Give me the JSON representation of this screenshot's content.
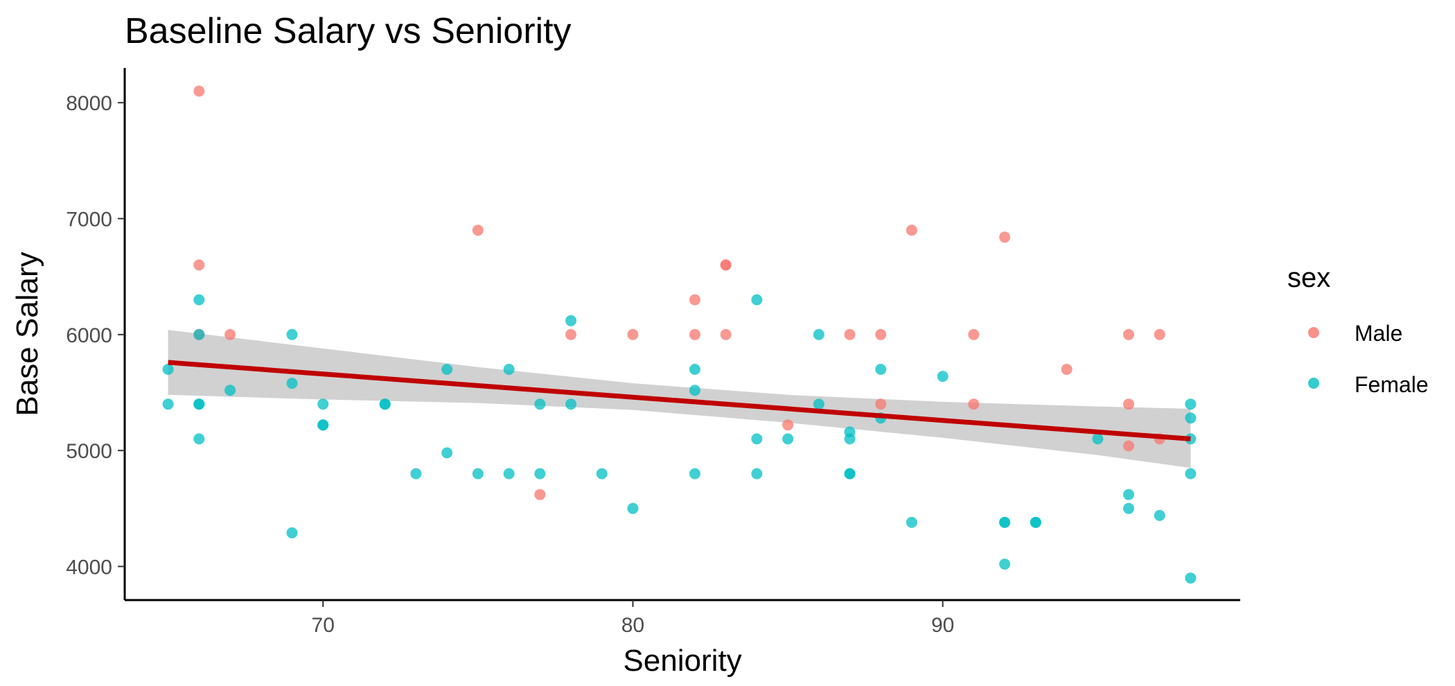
{
  "chart_data": {
    "type": "scatter",
    "title": "Baseline Salary vs Seniority",
    "xlabel": "Seniority",
    "ylabel": "Base Salary",
    "xlim": [
      63.6,
      99.6
    ],
    "ylim": [
      3710,
      8300
    ],
    "x_ticks": [
      70,
      80,
      90
    ],
    "y_ticks": [
      4000,
      5000,
      6000,
      7000,
      8000
    ],
    "grid": false,
    "legend": {
      "title": "sex",
      "position": "right"
    },
    "series": [
      {
        "name": "Male",
        "color": "#F8766D",
        "points": [
          [
            66,
            8100
          ],
          [
            66,
            6600
          ],
          [
            66,
            6000
          ],
          [
            67,
            6000
          ],
          [
            75,
            6900
          ],
          [
            77,
            4620
          ],
          [
            78,
            6000
          ],
          [
            80,
            6000
          ],
          [
            82,
            6300
          ],
          [
            82,
            6000
          ],
          [
            83,
            6600
          ],
          [
            83,
            6600
          ],
          [
            83,
            6000
          ],
          [
            85,
            5220
          ],
          [
            87,
            6000
          ],
          [
            88,
            6000
          ],
          [
            88,
            5400
          ],
          [
            89,
            6900
          ],
          [
            91,
            6000
          ],
          [
            91,
            5400
          ],
          [
            92,
            6840
          ],
          [
            94,
            5700
          ],
          [
            96,
            6000
          ],
          [
            96,
            5400
          ],
          [
            96,
            5040
          ],
          [
            97,
            6000
          ],
          [
            97,
            5100
          ]
        ]
      },
      {
        "name": "Female",
        "color": "#00BFC4",
        "points": [
          [
            65,
            5700
          ],
          [
            65,
            5400
          ],
          [
            66,
            6300
          ],
          [
            66,
            6000
          ],
          [
            66,
            5400
          ],
          [
            66,
            5400
          ],
          [
            66,
            5100
          ],
          [
            67,
            5520
          ],
          [
            69,
            6000
          ],
          [
            69,
            5580
          ],
          [
            69,
            4290
          ],
          [
            70,
            5400
          ],
          [
            70,
            5220
          ],
          [
            70,
            5220
          ],
          [
            72,
            5400
          ],
          [
            72,
            5400
          ],
          [
            73,
            4800
          ],
          [
            74,
            5700
          ],
          [
            74,
            4980
          ],
          [
            75,
            4800
          ],
          [
            76,
            5700
          ],
          [
            76,
            4800
          ],
          [
            77,
            5400
          ],
          [
            77,
            4800
          ],
          [
            78,
            6120
          ],
          [
            78,
            5400
          ],
          [
            79,
            4800
          ],
          [
            80,
            4500
          ],
          [
            82,
            5700
          ],
          [
            82,
            5520
          ],
          [
            82,
            4800
          ],
          [
            84,
            6300
          ],
          [
            84,
            5100
          ],
          [
            84,
            4800
          ],
          [
            85,
            5100
          ],
          [
            86,
            6000
          ],
          [
            86,
            5400
          ],
          [
            87,
            5160
          ],
          [
            87,
            5100
          ],
          [
            87,
            4800
          ],
          [
            87,
            4800
          ],
          [
            88,
            5700
          ],
          [
            88,
            5280
          ],
          [
            89,
            4380
          ],
          [
            90,
            5640
          ],
          [
            92,
            4380
          ],
          [
            92,
            4380
          ],
          [
            92,
            4020
          ],
          [
            93,
            4380
          ],
          [
            93,
            4380
          ],
          [
            95,
            5100
          ],
          [
            96,
            4620
          ],
          [
            96,
            4500
          ],
          [
            97,
            4440
          ],
          [
            98,
            5400
          ],
          [
            98,
            5280
          ],
          [
            98,
            5100
          ],
          [
            98,
            4800
          ],
          [
            98,
            3900
          ]
        ]
      }
    ],
    "trend": {
      "type": "linear fit",
      "color": "#C00000",
      "ribbon_color": "#BEBEBE",
      "x": [
        65,
        70,
        75,
        80,
        85,
        90,
        95,
        98
      ],
      "y": [
        5760,
        5660,
        5560,
        5460,
        5360,
        5260,
        5160,
        5100
      ],
      "ci_low": [
        5480,
        5440,
        5410,
        5350,
        5240,
        5110,
        4960,
        4850
      ],
      "ci_high": [
        6040,
        5880,
        5720,
        5580,
        5480,
        5420,
        5380,
        5360
      ]
    }
  }
}
